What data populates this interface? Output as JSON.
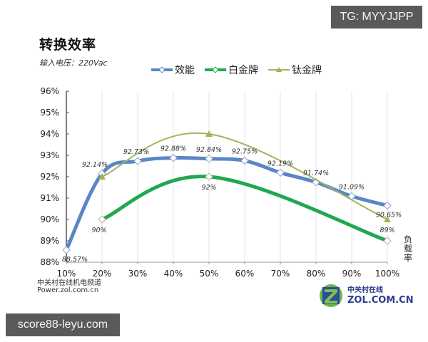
{
  "watermarks": {
    "top_right": "TG: MYYJJPP",
    "bottom_left": "score88-leyu.com"
  },
  "header": {
    "title": "转换效率",
    "subtitle": "输入电压：220Vac"
  },
  "footer": {
    "source_cn": "中关村在线机电频道",
    "source_url": "Power.zol.com.cn",
    "logo_cn": "中关村在线",
    "logo_en": "ZOL.COM.CN"
  },
  "axis_unit_label": "负载率",
  "chart_data": {
    "type": "line",
    "title": "转换效率",
    "subtitle": "输入电压：220Vac",
    "xlabel": "负载率",
    "ylabel": "",
    "categories": [
      "10%",
      "20%",
      "30%",
      "40%",
      "50%",
      "60%",
      "70%",
      "80%",
      "90%",
      "100%"
    ],
    "x": [
      10,
      20,
      30,
      40,
      50,
      60,
      70,
      80,
      90,
      100
    ],
    "yticks": [
      "88%",
      "89%",
      "90%",
      "91%",
      "92%",
      "93%",
      "94%",
      "95%",
      "96%"
    ],
    "ylim": [
      88,
      96
    ],
    "grid": "vertical",
    "legend_position": "top",
    "series": [
      {
        "name": "效能",
        "color": "#5b86c5",
        "marker": "diamond",
        "x": [
          10,
          20,
          30,
          40,
          50,
          60,
          70,
          80,
          90,
          100
        ],
        "values": [
          88.57,
          92.14,
          92.73,
          92.88,
          92.84,
          92.75,
          92.19,
          91.74,
          91.09,
          90.65
        ],
        "labels": [
          "88.57%",
          "92.14%",
          "92.73%",
          "92.88%",
          "92.84%",
          "92.75%",
          "92.19%",
          "91.74%",
          "91.09%",
          "90.65%"
        ]
      },
      {
        "name": "白金牌",
        "color": "#1fa84f",
        "marker": "diamond",
        "x": [
          20,
          50,
          100
        ],
        "values": [
          90,
          92,
          89
        ],
        "labels": [
          "90%",
          "92%",
          "89%"
        ]
      },
      {
        "name": "钛金牌",
        "color": "#a3b35a",
        "marker": "triangle",
        "x": [
          20,
          50,
          100
        ],
        "values": [
          92,
          94,
          90
        ],
        "labels": []
      }
    ]
  }
}
